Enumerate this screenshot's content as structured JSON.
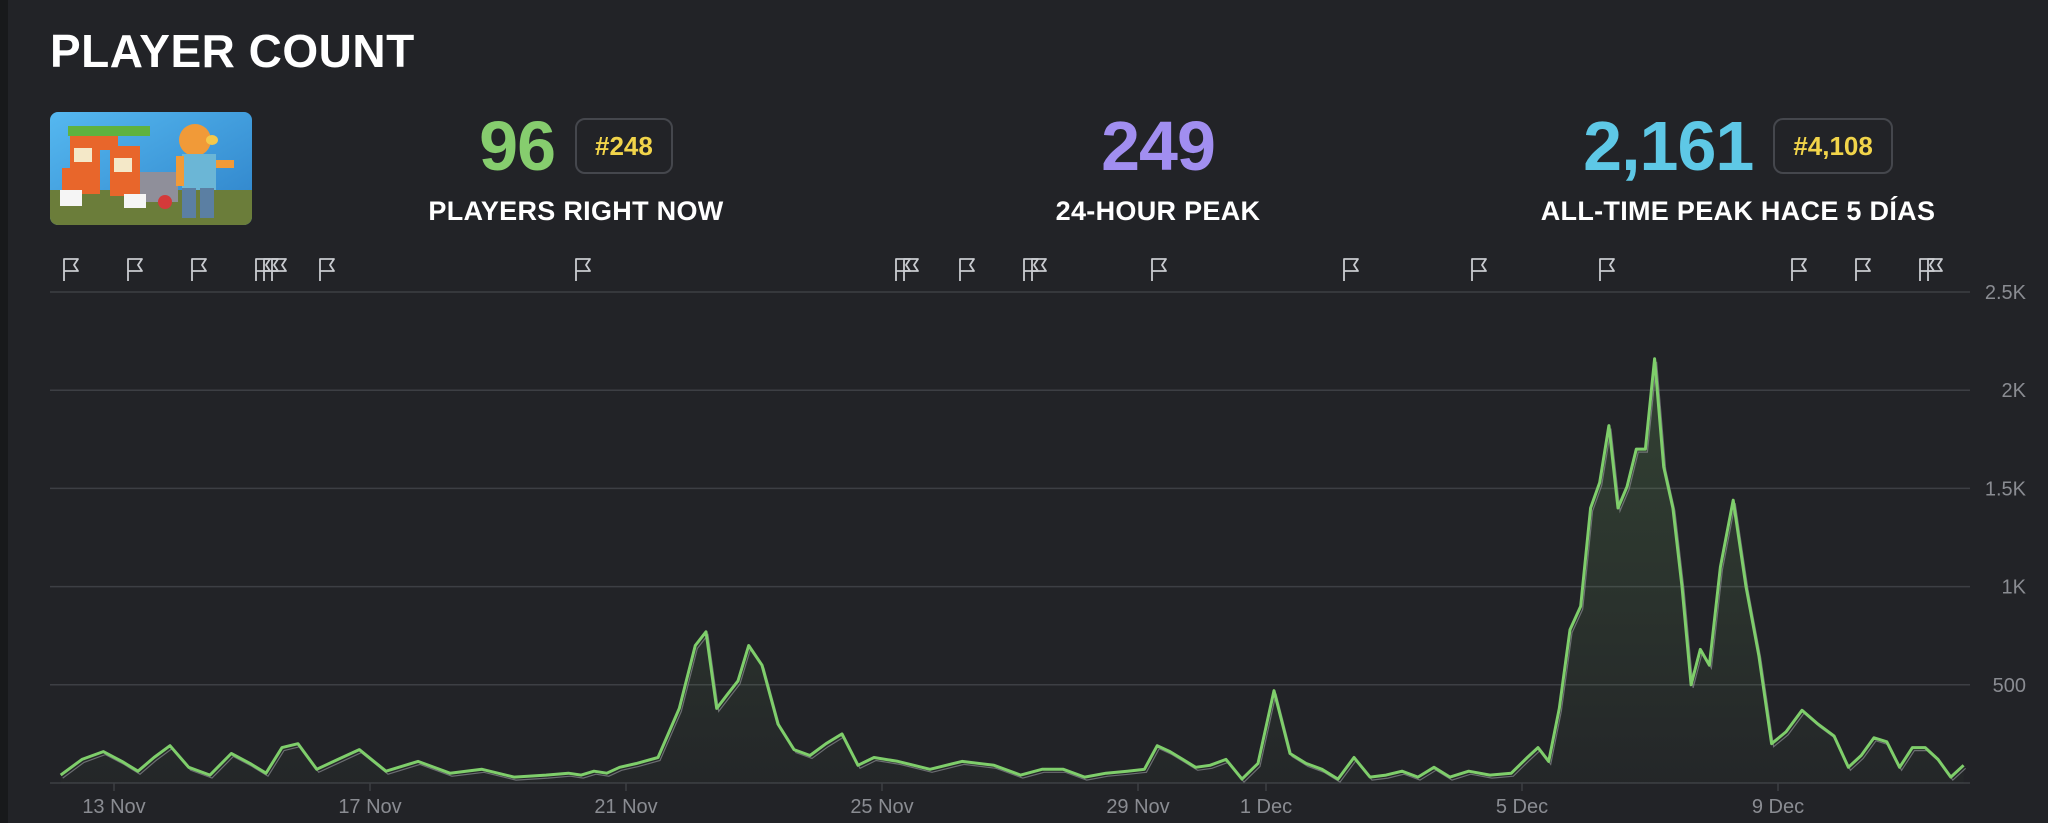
{
  "header": {
    "title": "PLAYER COUNT"
  },
  "thumbnail": {
    "icon": "game-thumbnail-image"
  },
  "stats": [
    {
      "value": "96",
      "rank": "#248",
      "label": "PLAYERS RIGHT NOW",
      "color": "#86cd6e"
    },
    {
      "value": "249",
      "rank": "",
      "label": "24-HOUR PEAK",
      "color": "#a18ef0"
    },
    {
      "value": "2,161",
      "rank": "#4,108",
      "label": "ALL-TIME PEAK HACE 5 DÍAS",
      "color": "#5ec8e6"
    }
  ],
  "colors": {
    "line": "#7fce6b",
    "grid": "#3d3f44",
    "tick": "#8a8c92",
    "rank": "#f1d44a"
  },
  "chart_data": {
    "type": "area",
    "x_start": "2025-11-12",
    "x_end": "2025-12-12",
    "xtick_labels": [
      "13 Nov",
      "17 Nov",
      "21 Nov",
      "25 Nov",
      "29 Nov",
      "1 Dec",
      "5 Dec",
      "9 Dec"
    ],
    "xtick_dates": [
      "2025-11-13",
      "2025-11-17",
      "2025-11-21",
      "2025-11-25",
      "2025-11-29",
      "2025-12-01",
      "2025-12-05",
      "2025-12-09"
    ],
    "ylim": [
      0,
      2500
    ],
    "yticks": [
      500,
      1000,
      1500,
      2000,
      2500
    ],
    "ytick_labels": [
      "500",
      "1K",
      "1.5K",
      "2K",
      "2.5K"
    ],
    "grid": true,
    "flag_dates": [
      "2025-11-12",
      "2025-11-13",
      "2025-11-14",
      "2025-11-15",
      "2025-11-15",
      "2025-11-15",
      "2025-11-16",
      "2025-11-20",
      "2025-11-25",
      "2025-11-25",
      "2025-11-26",
      "2025-11-27",
      "2025-11-27",
      "2025-11-29",
      "2025-12-02",
      "2025-12-04",
      "2025-12-06",
      "2025-12-09",
      "2025-12-10",
      "2025-12-11",
      "2025-12-11"
    ],
    "series": [
      {
        "values": [
          [
            "2025-11-12",
            40
          ],
          [
            "2025-11-12",
            120
          ],
          [
            "2025-11-12",
            160
          ],
          [
            "2025-11-13",
            110
          ],
          [
            "2025-11-13",
            60
          ],
          [
            "2025-11-13",
            130
          ],
          [
            "2025-11-13",
            190
          ],
          [
            "2025-11-14",
            80
          ],
          [
            "2025-11-14",
            40
          ],
          [
            "2025-11-14",
            150
          ],
          [
            "2025-11-15",
            100
          ],
          [
            "2025-11-15",
            50
          ],
          [
            "2025-11-15",
            180
          ],
          [
            "2025-11-15",
            200
          ],
          [
            "2025-11-16",
            70
          ],
          [
            "2025-11-16",
            120
          ],
          [
            "2025-11-16",
            170
          ],
          [
            "2025-11-17",
            60
          ],
          [
            "2025-11-17",
            110
          ],
          [
            "2025-11-18",
            50
          ],
          [
            "2025-11-18",
            70
          ],
          [
            "2025-11-19",
            30
          ],
          [
            "2025-11-19",
            40
          ],
          [
            "2025-11-20",
            50
          ],
          [
            "2025-11-20",
            40
          ],
          [
            "2025-11-20",
            60
          ],
          [
            "2025-11-20",
            50
          ],
          [
            "2025-11-20",
            80
          ],
          [
            "2025-11-21",
            100
          ],
          [
            "2025-11-21",
            130
          ],
          [
            "2025-11-21",
            380
          ],
          [
            "2025-11-22",
            700
          ],
          [
            "2025-11-22",
            770
          ],
          [
            "2025-11-22",
            380
          ],
          [
            "2025-11-22",
            450
          ],
          [
            "2025-11-22",
            520
          ],
          [
            "2025-11-22",
            700
          ],
          [
            "2025-11-23",
            600
          ],
          [
            "2025-11-23",
            300
          ],
          [
            "2025-11-23",
            170
          ],
          [
            "2025-11-23",
            140
          ],
          [
            "2025-11-24",
            200
          ],
          [
            "2025-11-24",
            250
          ],
          [
            "2025-11-24",
            90
          ],
          [
            "2025-11-24",
            130
          ],
          [
            "2025-11-25",
            110
          ],
          [
            "2025-11-25",
            70
          ],
          [
            "2025-11-26",
            110
          ],
          [
            "2025-11-26",
            90
          ],
          [
            "2025-11-27",
            40
          ],
          [
            "2025-11-27",
            70
          ],
          [
            "2025-11-27",
            70
          ],
          [
            "2025-11-28",
            30
          ],
          [
            "2025-11-28",
            50
          ],
          [
            "2025-11-28",
            60
          ],
          [
            "2025-11-29",
            70
          ],
          [
            "2025-11-29",
            190
          ],
          [
            "2025-11-29",
            160
          ],
          [
            "2025-11-29",
            120
          ],
          [
            "2025-11-29",
            80
          ],
          [
            "2025-11-30",
            90
          ],
          [
            "2025-11-30",
            120
          ],
          [
            "2025-11-30",
            20
          ],
          [
            "2025-11-30",
            100
          ],
          [
            "2025-12-01",
            470
          ],
          [
            "2025-12-01",
            150
          ],
          [
            "2025-12-01",
            100
          ],
          [
            "2025-12-01",
            70
          ],
          [
            "2025-12-02",
            20
          ],
          [
            "2025-12-02",
            130
          ],
          [
            "2025-12-02",
            30
          ],
          [
            "2025-12-02",
            40
          ],
          [
            "2025-12-03",
            60
          ],
          [
            "2025-12-03",
            30
          ],
          [
            "2025-12-03",
            80
          ],
          [
            "2025-12-03",
            30
          ],
          [
            "2025-12-04",
            60
          ],
          [
            "2025-12-04",
            40
          ],
          [
            "2025-12-04",
            50
          ],
          [
            "2025-12-05",
            130
          ],
          [
            "2025-12-05",
            180
          ],
          [
            "2025-12-05",
            110
          ],
          [
            "2025-12-05",
            380
          ],
          [
            "2025-12-05",
            780
          ],
          [
            "2025-12-05",
            900
          ],
          [
            "2025-12-06",
            1400
          ],
          [
            "2025-12-06",
            1530
          ],
          [
            "2025-12-06",
            1820
          ],
          [
            "2025-12-06",
            1400
          ],
          [
            "2025-12-06",
            1510
          ],
          [
            "2025-12-06",
            1700
          ],
          [
            "2025-12-06",
            1700
          ],
          [
            "2025-12-07",
            2160
          ],
          [
            "2025-12-07",
            1610
          ],
          [
            "2025-12-07",
            1400
          ],
          [
            "2025-12-07",
            1000
          ],
          [
            "2025-12-07",
            500
          ],
          [
            "2025-12-07",
            680
          ],
          [
            "2025-12-07",
            600
          ],
          [
            "2025-12-08",
            1100
          ],
          [
            "2025-12-08",
            1440
          ],
          [
            "2025-12-08",
            1000
          ],
          [
            "2025-12-08",
            650
          ],
          [
            "2025-12-08",
            200
          ],
          [
            "2025-12-09",
            260
          ],
          [
            "2025-12-09",
            370
          ],
          [
            "2025-12-09",
            300
          ],
          [
            "2025-12-09",
            240
          ],
          [
            "2025-12-10",
            80
          ],
          [
            "2025-12-10",
            140
          ],
          [
            "2025-12-10",
            230
          ],
          [
            "2025-12-10",
            210
          ],
          [
            "2025-12-10",
            80
          ],
          [
            "2025-12-11",
            180
          ],
          [
            "2025-12-11",
            180
          ],
          [
            "2025-12-11",
            120
          ],
          [
            "2025-12-11",
            30
          ],
          [
            "2025-12-11",
            90
          ]
        ]
      }
    ]
  }
}
